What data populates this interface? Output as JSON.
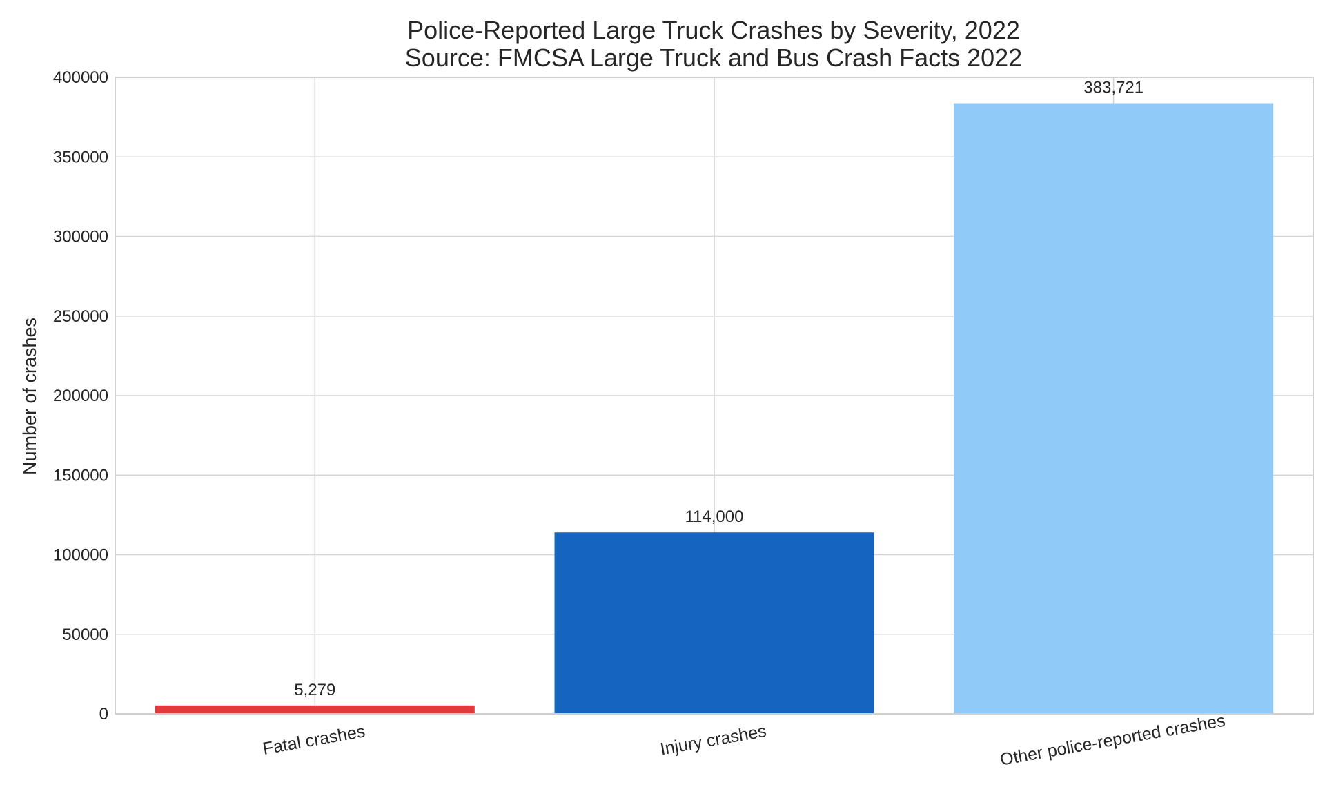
{
  "chart_data": {
    "type": "bar",
    "title": "Police-Reported Large Truck Crashes by Severity, 2022",
    "subtitle": "Source: FMCSA Large Truck and Bus Crash Facts 2022",
    "xlabel": "",
    "ylabel": "Number of crashes",
    "categories": [
      "Fatal crashes",
      "Injury crashes",
      "Other police-reported crashes"
    ],
    "values": [
      5279,
      114000,
      383721
    ],
    "data_labels": [
      "5,279",
      "114,000",
      "383,721"
    ],
    "colors": [
      "#e03a3a",
      "#1565c0",
      "#90caf9"
    ],
    "ylim": [
      0,
      400000
    ],
    "yticks": [
      0,
      50000,
      100000,
      150000,
      200000,
      250000,
      300000,
      350000,
      400000
    ],
    "ytick_labels": [
      "0",
      "50000",
      "100000",
      "150000",
      "200000",
      "250000",
      "300000",
      "350000",
      "400000"
    ],
    "grid": true,
    "legend": "none"
  }
}
